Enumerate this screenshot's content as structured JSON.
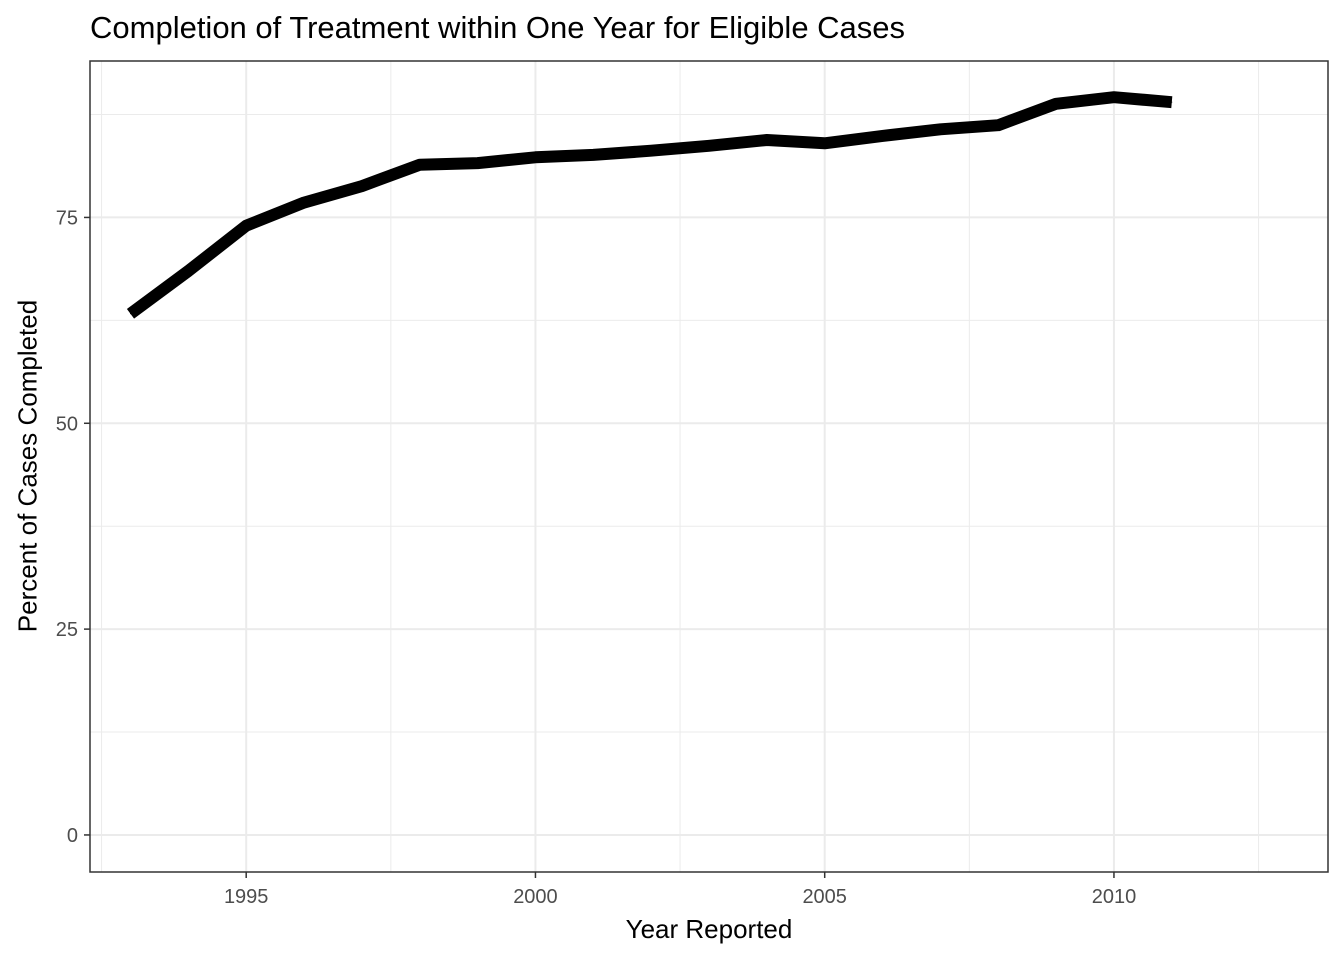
{
  "chart_data": {
    "type": "line",
    "title": "Completion of Treatment within One Year for Eligible Cases",
    "xlabel": "Year Reported",
    "ylabel": "Percent of Cases Completed",
    "xlim": [
      1992.3,
      2013.7
    ],
    "ylim": [
      -4.5,
      94
    ],
    "x_ticks": [
      1995,
      2000,
      2005,
      2010
    ],
    "x_tick_labels": [
      "1995",
      "2000",
      "2005",
      "2010"
    ],
    "y_ticks": [
      0,
      25,
      50,
      75
    ],
    "y_tick_labels": [
      "0",
      "25",
      "50",
      "75"
    ],
    "grid": true,
    "legend": "none",
    "series": [
      {
        "x": [
          1993,
          1994,
          1995,
          1996,
          1997,
          1998,
          1999,
          2000,
          2001,
          2002,
          2003,
          2004,
          2005,
          2006,
          2007,
          2008,
          2009,
          2010,
          2011
        ],
        "values": [
          63.3,
          68.5,
          74.0,
          76.8,
          78.8,
          81.4,
          81.6,
          82.3,
          82.6,
          83.1,
          83.7,
          84.4,
          84.0,
          84.9,
          85.7,
          86.2,
          88.8,
          89.6,
          89.0
        ],
        "color": "#000000"
      }
    ]
  }
}
